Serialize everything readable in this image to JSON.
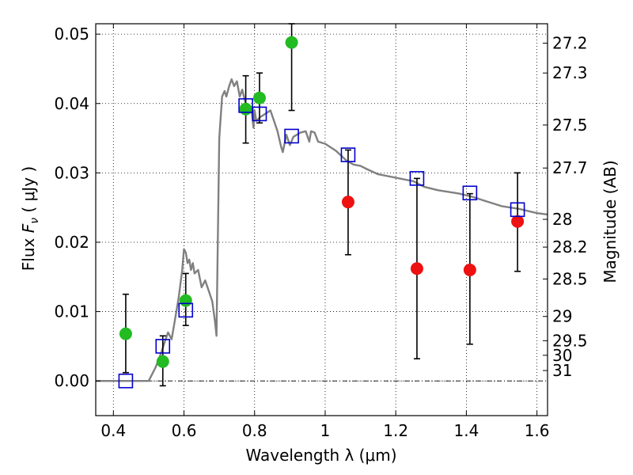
{
  "chart_data": {
    "type": "scatter",
    "title": "",
    "xlabel": "Wavelength  λ (μm)",
    "ylabel": "Flux  F_ν  ( μJy )",
    "ylabel_parts": {
      "prefix": "Flux  ",
      "symbol": "F",
      "subscript": "ν",
      "suffix": "  ( μJy )"
    },
    "y2label": "Magnitude (AB)",
    "xlim": [
      0.35,
      1.63
    ],
    "ylim": [
      -0.005,
      0.0515
    ],
    "grid": true,
    "x_ticks": [
      0.4,
      0.6,
      0.8,
      1.0,
      1.2,
      1.4,
      1.6
    ],
    "x_tick_labels": [
      "0.4",
      "0.6",
      "0.8",
      "1",
      "1.2",
      "1.4",
      "1.6"
    ],
    "y_ticks": [
      0.0,
      0.01,
      0.02,
      0.03,
      0.04,
      0.05
    ],
    "y_tick_labels": [
      "0.00",
      "0.01",
      "0.02",
      "0.03",
      "0.04",
      "0.05"
    ],
    "mag_ticks": [
      {
        "label": "27.2",
        "flux": 0.0487
      },
      {
        "label": "27.3",
        "flux": 0.0444
      },
      {
        "label": "27.5",
        "flux": 0.0369
      },
      {
        "label": "27.7",
        "flux": 0.0307
      },
      {
        "label": "28",
        "flux": 0.0233
      },
      {
        "label": "28.2",
        "flux": 0.0193
      },
      {
        "label": "28.5",
        "flux": 0.0147
      },
      {
        "label": "29",
        "flux": 0.0093
      },
      {
        "label": "29.5",
        "flux": 0.0058
      },
      {
        "label": "30",
        "flux": 0.0037
      },
      {
        "label": "31",
        "flux": 0.0015
      }
    ],
    "colors": {
      "model": "#808080",
      "green": "#22bb22",
      "red": "#ee1111",
      "box": "#0000cc",
      "errorbar": "#000000"
    },
    "model_sed": {
      "name": "model spectrum",
      "x": [
        0.35,
        0.43,
        0.5,
        0.52,
        0.535,
        0.548,
        0.555,
        0.565,
        0.575,
        0.585,
        0.595,
        0.6,
        0.605,
        0.61,
        0.615,
        0.62,
        0.625,
        0.63,
        0.64,
        0.65,
        0.66,
        0.67,
        0.68,
        0.688,
        0.692,
        0.7,
        0.708,
        0.715,
        0.72,
        0.728,
        0.735,
        0.742,
        0.75,
        0.758,
        0.765,
        0.772,
        0.78,
        0.79,
        0.797,
        0.8,
        0.805,
        0.815,
        0.83,
        0.845,
        0.855,
        0.865,
        0.875,
        0.88,
        0.89,
        0.9,
        0.91,
        0.93,
        0.945,
        0.955,
        0.96,
        0.97,
        0.98,
        1.0,
        1.03,
        1.06,
        1.08,
        1.1,
        1.12,
        1.15,
        1.2,
        1.25,
        1.28,
        1.32,
        1.38,
        1.42,
        1.45,
        1.5,
        1.55,
        1.6,
        1.63
      ],
      "y": [
        0.0,
        0.0,
        0.0,
        0.002,
        0.004,
        0.006,
        0.007,
        0.006,
        0.009,
        0.012,
        0.016,
        0.019,
        0.0185,
        0.017,
        0.0175,
        0.016,
        0.017,
        0.0155,
        0.016,
        0.0135,
        0.0145,
        0.013,
        0.0115,
        0.0085,
        0.0065,
        0.035,
        0.041,
        0.0418,
        0.041,
        0.0425,
        0.0435,
        0.0425,
        0.0432,
        0.041,
        0.042,
        0.0405,
        0.039,
        0.0395,
        0.0365,
        0.039,
        0.0375,
        0.038,
        0.0385,
        0.039,
        0.0375,
        0.036,
        0.0338,
        0.033,
        0.0355,
        0.034,
        0.0352,
        0.0358,
        0.036,
        0.0345,
        0.036,
        0.0358,
        0.0345,
        0.0342,
        0.0332,
        0.0318,
        0.0312,
        0.031,
        0.0305,
        0.0298,
        0.0293,
        0.0288,
        0.028,
        0.0275,
        0.027,
        0.0265,
        0.026,
        0.0252,
        0.0248,
        0.0242,
        0.024
      ]
    },
    "series": [
      {
        "name": "green points",
        "marker": "circle",
        "color": "#22bb22",
        "points": [
          {
            "x": 0.435,
            "y": 0.0068,
            "ylo": 0.0012,
            "yhi": 0.0125
          },
          {
            "x": 0.54,
            "y": 0.0028,
            "ylo": -0.0007,
            "yhi": 0.0065
          },
          {
            "x": 0.605,
            "y": 0.0116,
            "ylo": 0.008,
            "yhi": 0.0155
          },
          {
            "x": 0.775,
            "y": 0.0392,
            "ylo": 0.0343,
            "yhi": 0.044
          },
          {
            "x": 0.814,
            "y": 0.0408,
            "ylo": 0.0372,
            "yhi": 0.0444
          },
          {
            "x": 0.905,
            "y": 0.0488,
            "ylo": 0.039,
            "yhi": 0.0515
          }
        ]
      },
      {
        "name": "red points",
        "marker": "circle",
        "color": "#ee1111",
        "points": [
          {
            "x": 1.065,
            "y": 0.0258,
            "ylo": 0.0182,
            "yhi": 0.0333
          },
          {
            "x": 1.26,
            "y": 0.0162,
            "ylo": 0.0032,
            "yhi": 0.0292
          },
          {
            "x": 1.41,
            "y": 0.016,
            "ylo": 0.0053,
            "yhi": 0.027
          },
          {
            "x": 1.545,
            "y": 0.023,
            "ylo": 0.0158,
            "yhi": 0.03
          }
        ]
      },
      {
        "name": "model band fluxes",
        "marker": "square-open",
        "color": "#0000cc",
        "points": [
          {
            "x": 0.435,
            "y": 0.0
          },
          {
            "x": 0.54,
            "y": 0.005
          },
          {
            "x": 0.605,
            "y": 0.0102
          },
          {
            "x": 0.775,
            "y": 0.0397
          },
          {
            "x": 0.814,
            "y": 0.0385
          },
          {
            "x": 0.905,
            "y": 0.0353
          },
          {
            "x": 1.065,
            "y": 0.0326
          },
          {
            "x": 1.26,
            "y": 0.0292
          },
          {
            "x": 1.41,
            "y": 0.0271
          },
          {
            "x": 1.545,
            "y": 0.0247
          }
        ]
      }
    ]
  }
}
